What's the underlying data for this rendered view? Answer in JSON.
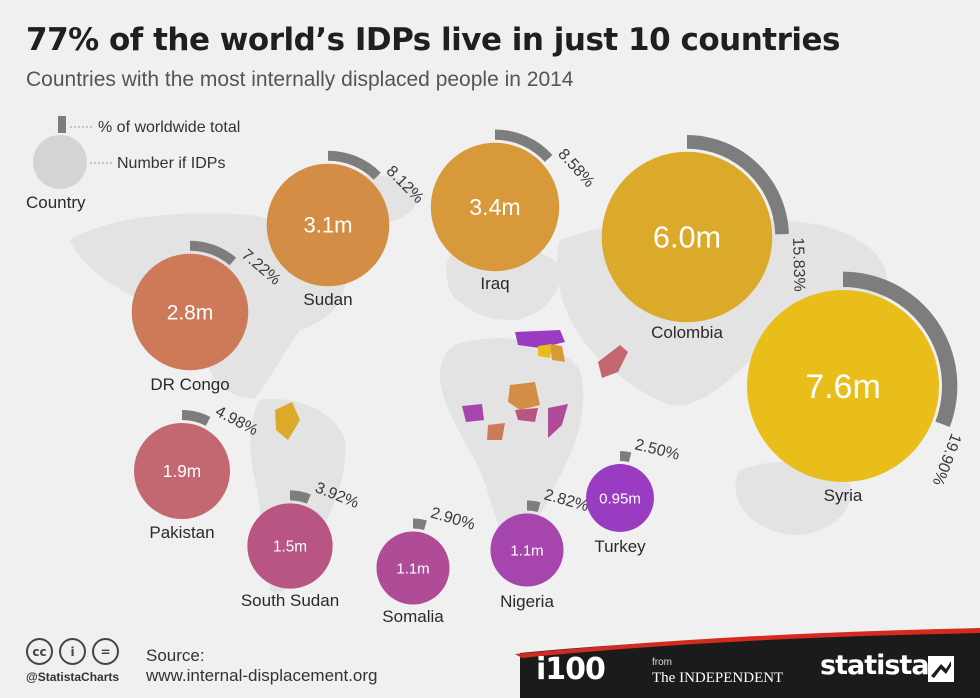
{
  "title": "77% of the world’s IDPs live in just 10 countries",
  "subtitle": "Countries with the most internally displaced people in 2014",
  "legend": {
    "pct_label": "% of worldwide total",
    "number_label": "Number if IDPs",
    "country_label": "Country"
  },
  "chart_data": {
    "type": "bubble",
    "title": "77% of the world’s IDPs live in just 10 countries",
    "subtitle": "Countries with the most internally displaced people in 2014",
    "unit": "million IDPs",
    "series": [
      {
        "country": "Syria",
        "value": 7.6,
        "value_label": "7.6m",
        "pct": 19.9,
        "pct_label": "19.90%",
        "color": "#e9be1b"
      },
      {
        "country": "Colombia",
        "value": 6.0,
        "value_label": "6.0m",
        "pct": 15.83,
        "pct_label": "15.83%",
        "color": "#dcaa2a"
      },
      {
        "country": "Iraq",
        "value": 3.4,
        "value_label": "3.4m",
        "pct": 8.58,
        "pct_label": "8.58%",
        "color": "#d7993a"
      },
      {
        "country": "Sudan",
        "value": 3.1,
        "value_label": "3.1m",
        "pct": 8.12,
        "pct_label": "8.12%",
        "color": "#d48d45"
      },
      {
        "country": "DR Congo",
        "value": 2.8,
        "value_label": "2.8m",
        "pct": 7.22,
        "pct_label": "7.22%",
        "color": "#cc7a58"
      },
      {
        "country": "Pakistan",
        "value": 1.9,
        "value_label": "1.9m",
        "pct": 4.98,
        "pct_label": "4.98%",
        "color": "#c36770"
      },
      {
        "country": "South Sudan",
        "value": 1.5,
        "value_label": "1.5m",
        "pct": 3.92,
        "pct_label": "3.92%",
        "color": "#b85583"
      },
      {
        "country": "Somalia",
        "value": 1.1,
        "value_label": "1.1m",
        "pct": 2.9,
        "pct_label": "2.90%",
        "color": "#b04b98"
      },
      {
        "country": "Nigeria",
        "value": 1.1,
        "value_label": "1.1m",
        "pct": 2.82,
        "pct_label": "2.82%",
        "color": "#a645ad"
      },
      {
        "country": "Turkey",
        "value": 0.95,
        "value_label": "0.95m",
        "pct": 2.5,
        "pct_label": "2.50%",
        "color": "#9a3cc2"
      }
    ]
  },
  "footer": {
    "handle": "@StatistaCharts",
    "source_label": "Source:",
    "source_url": "www.internal-displacement.org",
    "brand_i100": "i100",
    "brand_from": "from",
    "brand_independent": "The INDEPENDENT",
    "brand_statista": "statista",
    "colors": {
      "footer_bg": "#1b1b1b",
      "accent_red": "#d42a1f"
    }
  }
}
